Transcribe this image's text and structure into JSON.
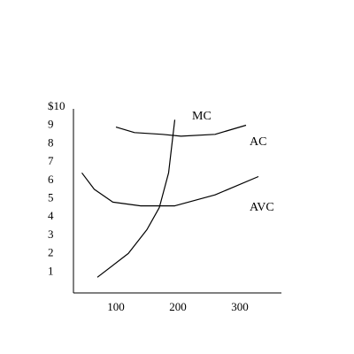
{
  "chart_data": {
    "type": "line",
    "title": "",
    "xlabel": "",
    "ylabel": "",
    "xlim": [
      20,
      350
    ],
    "ylim": [
      0,
      10
    ],
    "x_ticks": [
      {
        "value": 100,
        "label": "100"
      },
      {
        "value": 200,
        "label": "200"
      },
      {
        "value": 300,
        "label": "300"
      }
    ],
    "y_ticks": [
      {
        "value": 10,
        "label": "$10"
      },
      {
        "value": 9,
        "label": "9"
      },
      {
        "value": 8,
        "label": "8"
      },
      {
        "value": 7,
        "label": "7"
      },
      {
        "value": 6,
        "label": "6"
      },
      {
        "value": 5,
        "label": "5"
      },
      {
        "value": 4,
        "label": "4"
      },
      {
        "value": 3,
        "label": "3"
      },
      {
        "value": 2,
        "label": "2"
      },
      {
        "value": 1,
        "label": "1"
      }
    ],
    "grid": false,
    "series": [
      {
        "name": "MC",
        "color": "#000000",
        "points": [
          [
            70,
            1.0
          ],
          [
            120,
            2.3
          ],
          [
            150,
            3.6
          ],
          [
            170,
            4.8
          ],
          [
            185,
            6.7
          ],
          [
            195,
            9.6
          ]
        ]
      },
      {
        "name": "AC",
        "color": "#000000",
        "points": [
          [
            100,
            9.2
          ],
          [
            130,
            8.9
          ],
          [
            175,
            8.8
          ],
          [
            205,
            8.7
          ],
          [
            260,
            8.8
          ],
          [
            310,
            9.3
          ]
        ]
      },
      {
        "name": "AVC",
        "color": "#000000",
        "points": [
          [
            45,
            6.7
          ],
          [
            65,
            5.8
          ],
          [
            95,
            5.1
          ],
          [
            140,
            4.9
          ],
          [
            195,
            4.9
          ],
          [
            260,
            5.5
          ],
          [
            330,
            6.5
          ]
        ]
      }
    ]
  }
}
